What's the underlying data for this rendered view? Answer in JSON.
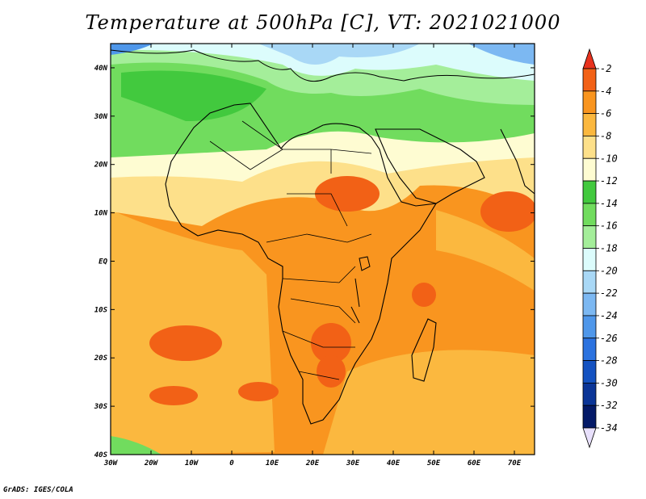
{
  "title": "Temperature at 500hPa [C], VT: 2021021000",
  "footer": "GrADS: IGES/COLA",
  "map": {
    "lon_min": -30,
    "lon_max": 75,
    "lat_min": -40,
    "lat_max": 45,
    "lon_ticks": [
      {
        "value": -30,
        "label": "30W"
      },
      {
        "value": -20,
        "label": "20W"
      },
      {
        "value": -10,
        "label": "10W"
      },
      {
        "value": 0,
        "label": "0"
      },
      {
        "value": 10,
        "label": "10E"
      },
      {
        "value": 20,
        "label": "20E"
      },
      {
        "value": 30,
        "label": "30E"
      },
      {
        "value": 40,
        "label": "40E"
      },
      {
        "value": 50,
        "label": "50E"
      },
      {
        "value": 60,
        "label": "60E"
      },
      {
        "value": 70,
        "label": "70E"
      }
    ],
    "lat_ticks": [
      {
        "value": 40,
        "label": "40N"
      },
      {
        "value": 30,
        "label": "30N"
      },
      {
        "value": 20,
        "label": "20N"
      },
      {
        "value": 10,
        "label": "10N"
      },
      {
        "value": 0,
        "label": "EQ"
      },
      {
        "value": -10,
        "label": "10S"
      },
      {
        "value": -20,
        "label": "20S"
      },
      {
        "value": -30,
        "label": "30S"
      },
      {
        "value": -40,
        "label": "40S"
      }
    ]
  },
  "colorbar": {
    "labels": [
      "-2",
      "-4",
      "-6",
      "-8",
      "-10",
      "-12",
      "-14",
      "-16",
      "-18",
      "-20",
      "-22",
      "-24",
      "-26",
      "-28",
      "-30",
      "-32",
      "-34"
    ],
    "colors": [
      "#e8321e",
      "#f26116",
      "#f9951f",
      "#fbb83f",
      "#fde08a",
      "#fefcd2",
      "#42c93e",
      "#71dc5e",
      "#a4ee9a",
      "#dcfcfc",
      "#a9d8f6",
      "#7cb8f2",
      "#4f97ea",
      "#2b72df",
      "#1452c1",
      "#0b3597",
      "#041a68",
      "#e8e0fc"
    ]
  }
}
